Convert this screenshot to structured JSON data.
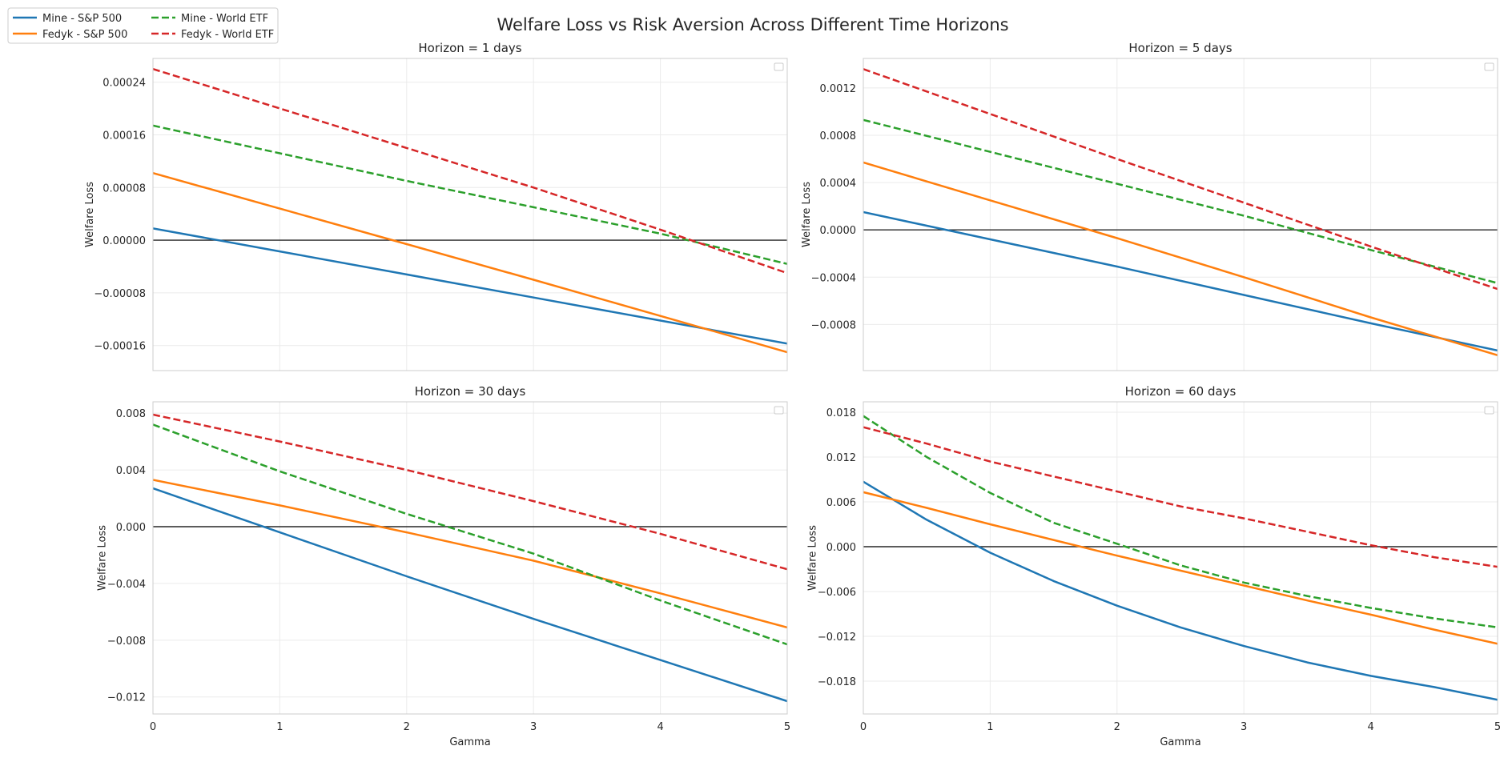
{
  "figure": {
    "title": "Welfare Loss vs Risk Aversion Across Different Time Horizons",
    "legend": {
      "placement": "top-left",
      "entries": [
        {
          "label": "Mine - S&P 500",
          "color": "#1f77b4",
          "dash": "solid"
        },
        {
          "label": "Fedyk - S&P 500",
          "color": "#ff7f0e",
          "dash": "solid"
        },
        {
          "label": "Mine - World ETF",
          "color": "#2ca02c",
          "dash": "dashed"
        },
        {
          "label": "Fedyk - World ETF",
          "color": "#d62728",
          "dash": "dashed"
        }
      ]
    },
    "colors": {
      "zero_line": "#262626",
      "grid": "#ebebeb",
      "frame": "#cccccc"
    }
  },
  "chart_data": [
    {
      "type": "line",
      "title": "Horizon = 1 days",
      "xlabel": "",
      "ylabel": "Welfare Loss",
      "xlim": [
        0,
        5
      ],
      "ylim": [
        -0.000198,
        0.000276
      ],
      "xticks": [
        0,
        1,
        2,
        3,
        4,
        5
      ],
      "xtick_labels": [
        "",
        "",
        "",
        "",
        "",
        ""
      ],
      "yticks": [
        0.00024,
        0.00016,
        8e-05,
        0.0,
        -8e-05,
        -0.00016
      ],
      "ytick_labels": [
        "0.00024",
        "0.00016",
        "0.00008",
        "0.00000",
        "−0.00008",
        "−0.00016"
      ],
      "grid": true,
      "zero_line": true,
      "series": [
        {
          "name": "Mine - S&P 500",
          "color": "#1f77b4",
          "dash": "solid",
          "x": [
            0,
            1,
            2,
            3,
            4,
            5
          ],
          "y": [
            1.8e-05,
            -1.7e-05,
            -5.2e-05,
            -8.7e-05,
            -0.000122,
            -0.000157
          ]
        },
        {
          "name": "Fedyk - S&P 500",
          "color": "#ff7f0e",
          "dash": "solid",
          "x": [
            0,
            1,
            2,
            3,
            4,
            5
          ],
          "y": [
            0.000102,
            4.8e-05,
            -6e-06,
            -6e-05,
            -0.000115,
            -0.00017
          ]
        },
        {
          "name": "Mine - World ETF",
          "color": "#2ca02c",
          "dash": "dashed",
          "x": [
            0,
            1,
            2,
            3,
            4,
            5
          ],
          "y": [
            0.000174,
            0.000132,
            9e-05,
            5e-05,
            1e-05,
            -3.6e-05
          ]
        },
        {
          "name": "Fedyk - World ETF",
          "color": "#d62728",
          "dash": "dashed",
          "x": [
            0,
            1,
            2,
            3,
            4,
            5
          ],
          "y": [
            0.00026,
            0.0002,
            0.00014,
            8e-05,
            1.6e-05,
            -5e-05
          ]
        }
      ]
    },
    {
      "type": "line",
      "title": "Horizon = 5 days",
      "xlabel": "",
      "ylabel": "Welfare Loss",
      "xlim": [
        0,
        5
      ],
      "ylim": [
        -0.00119,
        0.00145
      ],
      "xticks": [
        0,
        1,
        2,
        3,
        4,
        5
      ],
      "xtick_labels": [
        "",
        "",
        "",
        "",
        "",
        ""
      ],
      "yticks": [
        0.0012,
        0.0008,
        0.0004,
        0.0,
        -0.0004,
        -0.0008
      ],
      "ytick_labels": [
        "0.0012",
        "0.0008",
        "0.0004",
        "0.0000",
        "−0.0004",
        "−0.0008"
      ],
      "grid": true,
      "zero_line": true,
      "series": [
        {
          "name": "Mine - S&P 500",
          "color": "#1f77b4",
          "dash": "solid",
          "x": [
            0,
            1,
            2,
            3,
            4,
            5
          ],
          "y": [
            0.00015,
            -8e-05,
            -0.00031,
            -0.00055,
            -0.00079,
            -0.00102
          ]
        },
        {
          "name": "Fedyk - S&P 500",
          "color": "#ff7f0e",
          "dash": "solid",
          "x": [
            0,
            1,
            2,
            3,
            4,
            5
          ],
          "y": [
            0.00057,
            0.00025,
            -7e-05,
            -0.0004,
            -0.00074,
            -0.00106
          ]
        },
        {
          "name": "Mine - World ETF",
          "color": "#2ca02c",
          "dash": "dashed",
          "x": [
            0,
            1,
            2,
            3,
            4,
            5
          ],
          "y": [
            0.00093,
            0.00066,
            0.00039,
            0.00012,
            -0.00017,
            -0.00045
          ]
        },
        {
          "name": "Fedyk - World ETF",
          "color": "#d62728",
          "dash": "dashed",
          "x": [
            0,
            1,
            2,
            3,
            4,
            5
          ],
          "y": [
            0.00136,
            0.00098,
            0.0006,
            0.00023,
            -0.00014,
            -0.0005
          ]
        }
      ]
    },
    {
      "type": "line",
      "title": "Horizon = 30 days",
      "xlabel": "Gamma",
      "ylabel": "Welfare Loss",
      "xlim": [
        0,
        5
      ],
      "ylim": [
        -0.0132,
        0.0088
      ],
      "xticks": [
        0,
        1,
        2,
        3,
        4,
        5
      ],
      "xtick_labels": [
        "0",
        "1",
        "2",
        "3",
        "4",
        "5"
      ],
      "yticks": [
        0.008,
        0.004,
        0.0,
        -0.004,
        -0.008,
        -0.012
      ],
      "ytick_labels": [
        "0.008",
        "0.004",
        "0.000",
        "−0.004",
        "−0.008",
        "−0.012"
      ],
      "grid": true,
      "zero_line": true,
      "series": [
        {
          "name": "Mine - S&P 500",
          "color": "#1f77b4",
          "dash": "solid",
          "x": [
            0,
            1,
            2,
            3,
            4,
            5
          ],
          "y": [
            0.0027,
            -0.0004,
            -0.0035,
            -0.0065,
            -0.0094,
            -0.0123
          ]
        },
        {
          "name": "Fedyk - S&P 500",
          "color": "#ff7f0e",
          "dash": "solid",
          "x": [
            0,
            1,
            2,
            3,
            4,
            5
          ],
          "y": [
            0.0033,
            0.0015,
            -0.0004,
            -0.0024,
            -0.0047,
            -0.0071
          ]
        },
        {
          "name": "Mine - World ETF",
          "color": "#2ca02c",
          "dash": "dashed",
          "x": [
            0,
            1,
            2,
            3,
            4,
            5
          ],
          "y": [
            0.0072,
            0.0039,
            0.0009,
            -0.0019,
            -0.0052,
            -0.0083
          ]
        },
        {
          "name": "Fedyk - World ETF",
          "color": "#d62728",
          "dash": "dashed",
          "x": [
            0,
            1,
            2,
            3,
            4,
            5
          ],
          "y": [
            0.0079,
            0.006,
            0.004,
            0.0018,
            -0.0005,
            -0.003
          ]
        }
      ]
    },
    {
      "type": "line",
      "title": "Horizon = 60 days",
      "xlabel": "Gamma",
      "ylabel": "Welfare Loss",
      "xlim": [
        0,
        5
      ],
      "ylim": [
        -0.0224,
        0.0194
      ],
      "xticks": [
        0,
        1,
        2,
        3,
        4,
        5
      ],
      "xtick_labels": [
        "0",
        "1",
        "2",
        "3",
        "4",
        "5"
      ],
      "yticks": [
        0.018,
        0.012,
        0.006,
        0.0,
        -0.006,
        -0.012,
        -0.018
      ],
      "ytick_labels": [
        "0.018",
        "0.012",
        "0.006",
        "0.000",
        "−0.006",
        "−0.012",
        "−0.018"
      ],
      "grid": true,
      "zero_line": true,
      "series": [
        {
          "name": "Mine - S&P 500",
          "color": "#1f77b4",
          "dash": "solid",
          "x": [
            0,
            0.5,
            1,
            1.5,
            2,
            2.5,
            3,
            3.5,
            4,
            4.5,
            5
          ],
          "y": [
            0.0087,
            0.0036,
            -0.0008,
            -0.0046,
            -0.0079,
            -0.0108,
            -0.0133,
            -0.0155,
            -0.0173,
            -0.0188,
            -0.0205
          ]
        },
        {
          "name": "Fedyk - S&P 500",
          "color": "#ff7f0e",
          "dash": "solid",
          "x": [
            0,
            0.5,
            1,
            1.5,
            2,
            2.5,
            3,
            3.5,
            4,
            4.5,
            5
          ],
          "y": [
            0.0073,
            0.0052,
            0.003,
            0.0009,
            -0.0012,
            -0.0032,
            -0.0052,
            -0.0072,
            -0.0091,
            -0.0111,
            -0.013
          ]
        },
        {
          "name": "Mine - World ETF",
          "color": "#2ca02c",
          "dash": "dashed",
          "x": [
            0,
            0.5,
            1,
            1.5,
            2,
            2.5,
            3,
            3.5,
            4,
            4.5,
            5
          ],
          "y": [
            0.0175,
            0.012,
            0.0072,
            0.0032,
            0.0004,
            -0.0025,
            -0.0048,
            -0.0066,
            -0.0082,
            -0.0096,
            -0.0108
          ]
        },
        {
          "name": "Fedyk - World ETF",
          "color": "#d62728",
          "dash": "dashed",
          "x": [
            0,
            0.5,
            1,
            1.5,
            2,
            2.5,
            3,
            3.5,
            4,
            4.5,
            5
          ],
          "y": [
            0.016,
            0.0138,
            0.0114,
            0.0094,
            0.0074,
            0.0054,
            0.0038,
            0.002,
            0.0002,
            -0.0014,
            -0.0027
          ]
        }
      ]
    }
  ]
}
